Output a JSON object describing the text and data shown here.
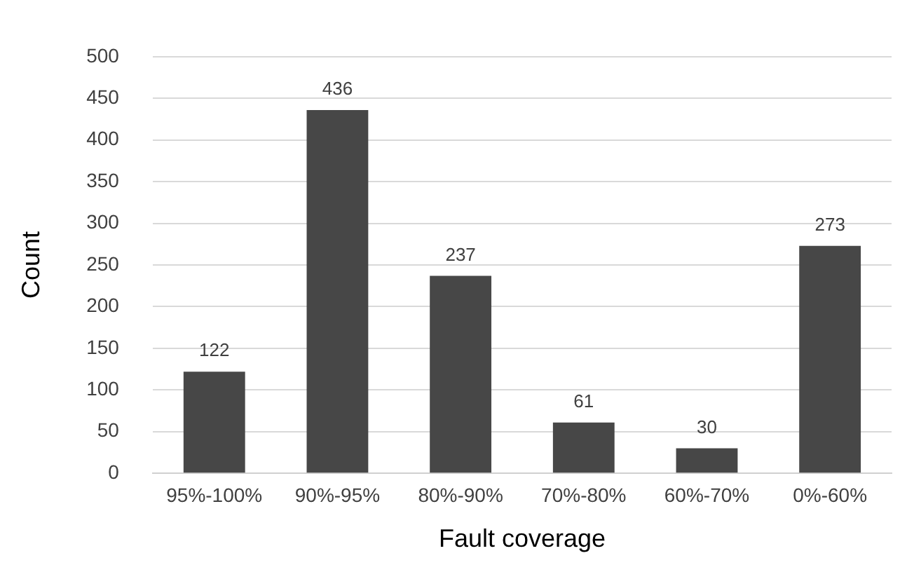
{
  "chart_data": {
    "type": "bar",
    "xlabel": "Fault coverage",
    "ylabel": "Count",
    "categories": [
      "95%-100%",
      "90%-95%",
      "80%-90%",
      "70%-80%",
      "60%-70%",
      "0%-60%"
    ],
    "values": [
      122,
      436,
      237,
      61,
      30,
      273
    ],
    "color": "#474747",
    "ylim": [
      0,
      500
    ],
    "yticks": [
      0,
      50,
      100,
      150,
      200,
      250,
      300,
      350,
      400,
      450,
      500
    ],
    "grid": "y",
    "data_labels": true,
    "legend": false
  }
}
